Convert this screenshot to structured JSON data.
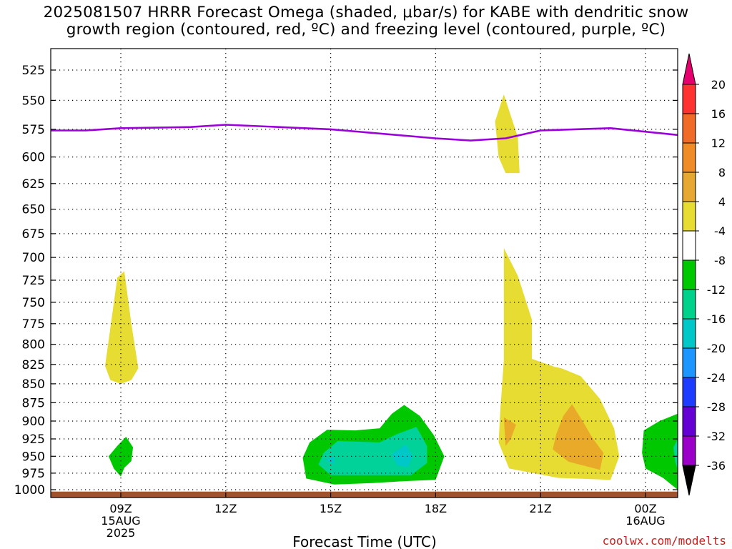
{
  "title": {
    "line1": "2025081507 HRRR Forecast Omega (shaded, μbar/s) for KABE with dendritic snow",
    "line2": "growth region (contoured, red, ºC) and freezing level (contoured, purple, ºC)"
  },
  "chart_data": {
    "type": "contour",
    "title": "2025081507 HRRR Forecast Omega (shaded, μbar/s) for KABE with dendritic snow growth region (contoured, red, ºC) and freezing level (contoured, purple, ºC)",
    "xlabel": "Forecast Time (UTC)",
    "ylabel": "",
    "x_ticks": [
      {
        "hour": 9,
        "lines": [
          "09Z",
          "15AUG",
          "2025"
        ]
      },
      {
        "hour": 12,
        "lines": [
          "12Z"
        ]
      },
      {
        "hour": 15,
        "lines": [
          "15Z"
        ]
      },
      {
        "hour": 18,
        "lines": [
          "18Z"
        ]
      },
      {
        "hour": 21,
        "lines": [
          "21Z"
        ]
      },
      {
        "hour": 24,
        "lines": [
          "00Z",
          "16AUG"
        ]
      }
    ],
    "xlim": [
      7,
      25
    ],
    "y_ticks": [
      525,
      550,
      575,
      600,
      625,
      650,
      675,
      700,
      725,
      750,
      775,
      800,
      825,
      850,
      875,
      900,
      925,
      950,
      975,
      1000
    ],
    "ylim": [
      505,
      1005
    ],
    "y_scale": "log-pressure",
    "grid": true,
    "freezing_level": {
      "color": "#9b00d8",
      "points": [
        [
          7,
          576
        ],
        [
          8,
          576
        ],
        [
          9,
          574
        ],
        [
          11,
          573
        ],
        [
          12,
          571
        ],
        [
          15,
          575
        ],
        [
          18,
          583
        ],
        [
          19,
          585
        ],
        [
          20,
          583
        ],
        [
          21,
          576
        ],
        [
          23,
          574
        ],
        [
          25,
          580
        ]
      ]
    },
    "surface": {
      "color": "#a0522d",
      "pressure": 1003
    },
    "shaded_regions": [
      {
        "level": "4",
        "color": "#e6dc32",
        "points": [
          [
            8.55,
            827
          ],
          [
            8.9,
            722
          ],
          [
            9.1,
            715
          ],
          [
            9.3,
            775
          ],
          [
            9.5,
            830
          ],
          [
            9.3,
            845
          ],
          [
            9.0,
            850
          ],
          [
            8.7,
            845
          ]
        ]
      },
      {
        "level": "4",
        "color": "#e6dc32",
        "points": [
          [
            19.7,
            568
          ],
          [
            19.95,
            545
          ],
          [
            20.35,
            582
          ],
          [
            20.4,
            615
          ],
          [
            20.0,
            615
          ],
          [
            19.8,
            600
          ]
        ]
      },
      {
        "level": "4",
        "color": "#e6dc32",
        "points": [
          [
            19.85,
            885
          ],
          [
            19.95,
            820
          ],
          [
            19.95,
            690
          ],
          [
            20.35,
            720
          ],
          [
            20.75,
            770
          ],
          [
            20.75,
            818
          ],
          [
            21.4,
            828
          ],
          [
            21.6,
            830
          ],
          [
            22.15,
            840
          ],
          [
            22.7,
            870
          ],
          [
            23.1,
            910
          ],
          [
            23.25,
            950
          ],
          [
            23.0,
            985
          ],
          [
            21.5,
            982
          ],
          [
            20.1,
            968
          ],
          [
            19.8,
            930
          ]
        ]
      },
      {
        "level": "8",
        "color": "#e8aa28",
        "points": [
          [
            19.95,
            895
          ],
          [
            20.3,
            905
          ],
          [
            20.15,
            925
          ],
          [
            20.0,
            935
          ]
        ]
      },
      {
        "level": "8",
        "color": "#e8aa28",
        "points": [
          [
            21.45,
            918
          ],
          [
            21.65,
            893
          ],
          [
            21.9,
            877
          ],
          [
            22.2,
            900
          ],
          [
            22.5,
            925
          ],
          [
            22.8,
            945
          ],
          [
            22.7,
            970
          ],
          [
            21.8,
            958
          ],
          [
            21.35,
            940
          ]
        ]
      },
      {
        "level": "-4",
        "color": "#00c800",
        "points": [
          [
            8.65,
            950
          ],
          [
            8.9,
            935
          ],
          [
            9.15,
            922
          ],
          [
            9.35,
            937
          ],
          [
            9.3,
            957
          ],
          [
            9.1,
            967
          ],
          [
            9.0,
            980
          ],
          [
            8.8,
            968
          ]
        ]
      },
      {
        "level": "-4",
        "color": "#00c800",
        "points": [
          [
            14.2,
            952
          ],
          [
            14.4,
            930
          ],
          [
            14.9,
            912
          ],
          [
            15.7,
            913
          ],
          [
            16.4,
            910
          ],
          [
            16.75,
            890
          ],
          [
            17.1,
            878
          ],
          [
            17.55,
            893
          ],
          [
            17.95,
            920
          ],
          [
            18.25,
            950
          ],
          [
            18.0,
            985
          ],
          [
            17.1,
            987
          ],
          [
            16.2,
            990
          ],
          [
            15.1,
            992
          ],
          [
            14.3,
            983
          ]
        ]
      },
      {
        "level": "-8",
        "color": "#00d29a",
        "points": [
          [
            14.8,
            945
          ],
          [
            15.2,
            928
          ],
          [
            16.4,
            930
          ],
          [
            16.9,
            918
          ],
          [
            17.45,
            908
          ],
          [
            17.75,
            935
          ],
          [
            17.75,
            960
          ],
          [
            17.3,
            978
          ],
          [
            16.2,
            978
          ],
          [
            15.0,
            978
          ],
          [
            14.65,
            962
          ]
        ]
      },
      {
        "level": "-12",
        "color": "#00c8c8",
        "points": [
          [
            16.75,
            947
          ],
          [
            17.15,
            933
          ],
          [
            17.35,
            950
          ],
          [
            17.2,
            966
          ],
          [
            16.9,
            963
          ]
        ]
      },
      {
        "level": "-12",
        "color": "#00c8c8",
        "points": [
          [
            14.85,
            955
          ],
          [
            15.1,
            950
          ],
          [
            15.1,
            962
          ]
        ]
      },
      {
        "level": "-4",
        "color": "#00c800",
        "points": [
          [
            23.95,
            913
          ],
          [
            24.4,
            900
          ],
          [
            24.95,
            890
          ],
          [
            25.0,
            1000
          ],
          [
            24.5,
            982
          ],
          [
            24.0,
            968
          ],
          [
            23.9,
            945
          ]
        ]
      },
      {
        "level": "-8",
        "color": "#00d29a",
        "points": [
          [
            24.8,
            937
          ],
          [
            24.95,
            925
          ],
          [
            25.0,
            970
          ],
          [
            24.85,
            958
          ]
        ]
      }
    ],
    "colorbar": {
      "labels": [
        "20",
        "16",
        "12",
        "8",
        "4",
        "-4",
        "-8",
        "-12",
        "-16",
        "-20",
        "-24",
        "-28",
        "-32",
        "-36"
      ],
      "colors": [
        "#e6006e",
        "#ff3232",
        "#f06a28",
        "#f08c28",
        "#e6a832",
        "#e6dc32",
        "#ffffff",
        "#00c800",
        "#00d28c",
        "#00c8c8",
        "#1e96ff",
        "#1e3cff",
        "#6400d2",
        "#9b00c8",
        "#aaaaaa",
        "#000000"
      ]
    }
  },
  "footer": {
    "xlabel": "Forecast Time (UTC)",
    "credit": "coolwx.com/modelts"
  }
}
